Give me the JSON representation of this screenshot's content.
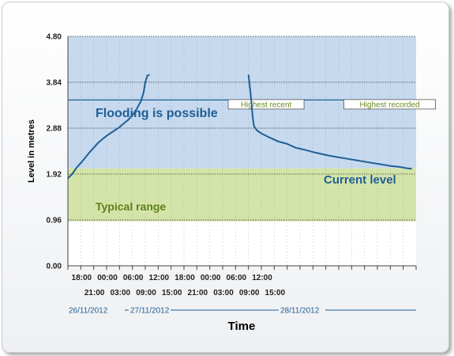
{
  "chart_data": {
    "type": "line",
    "xlabel": "Time",
    "ylabel": "Level in metres",
    "ylim": [
      0,
      4.8
    ],
    "y_ticks": [
      "0.00",
      "0.96",
      "1.92",
      "2.88",
      "3.84",
      "4.80"
    ],
    "x_ticks_upper": [
      "18:00",
      "00:00",
      "06:00",
      "12:00",
      "18:00",
      "00:00",
      "06:00",
      "12:00"
    ],
    "x_ticks_lower": [
      "21:00",
      "03:00",
      "09:00",
      "15:00",
      "21:00",
      "03:00",
      "09:00",
      "15:00"
    ],
    "dates": [
      "26/11/2012",
      "27/11/2012",
      "28/11/2012"
    ],
    "zones": [
      {
        "label": "Flooding is possible",
        "from": 2.04,
        "to": 4.8,
        "color": "#c6d9ee"
      },
      {
        "label": "Typical range",
        "from": 0.93,
        "to": 2.04,
        "color": "#d4e4a8"
      }
    ],
    "reference_lines": [
      {
        "label": "Highest recent",
        "value": 3.47
      },
      {
        "label": "Highest recorded",
        "value": 3.47
      }
    ],
    "series": [
      {
        "name": "Current level",
        "color": "#1f5e96",
        "segments": [
          [
            [
              15.0,
              1.83
            ],
            [
              16.0,
              1.92
            ],
            [
              17.0,
              2.05
            ],
            [
              18.0,
              2.15
            ],
            [
              19.0,
              2.26
            ],
            [
              20.0,
              2.37
            ],
            [
              21.0,
              2.47
            ],
            [
              22.0,
              2.57
            ],
            [
              23.0,
              2.65
            ],
            [
              24.0,
              2.72
            ],
            [
              25.0,
              2.78
            ],
            [
              26.0,
              2.84
            ],
            [
              27.0,
              2.9
            ],
            [
              28.0,
              2.98
            ],
            [
              29.0,
              3.05
            ],
            [
              30.0,
              3.15
            ],
            [
              31.0,
              3.28
            ],
            [
              32.0,
              3.45
            ],
            [
              32.6,
              3.62
            ],
            [
              33.0,
              3.84
            ],
            [
              33.5,
              3.98
            ],
            [
              34.0,
              4.0
            ]
          ]
        ],
        "segments2": [
          [
            [
              57.0,
              4.0
            ],
            [
              57.5,
              3.6
            ],
            [
              58.0,
              3.1
            ],
            [
              58.3,
              2.92
            ],
            [
              59.0,
              2.83
            ],
            [
              60.0,
              2.77
            ],
            [
              62.0,
              2.68
            ],
            [
              64.0,
              2.6
            ],
            [
              66.0,
              2.55
            ],
            [
              68.0,
              2.47
            ],
            [
              70.0,
              2.43
            ],
            [
              72.0,
              2.38
            ],
            [
              74.0,
              2.34
            ],
            [
              76.0,
              2.3
            ],
            [
              78.0,
              2.27
            ],
            [
              80.0,
              2.24
            ],
            [
              82.0,
              2.21
            ],
            [
              84.0,
              2.18
            ],
            [
              86.0,
              2.15
            ],
            [
              88.0,
              2.12
            ],
            [
              90.0,
              2.09
            ],
            [
              92.0,
              2.07
            ],
            [
              94.0,
              2.04
            ],
            [
              95.0,
              2.03
            ]
          ]
        ]
      }
    ],
    "annotation": "Current level"
  }
}
